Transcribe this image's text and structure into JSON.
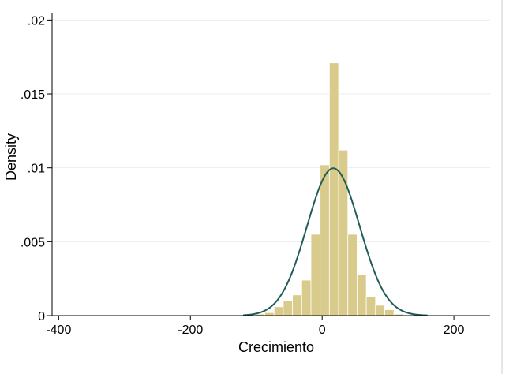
{
  "chart_data": {
    "type": "bar",
    "subtype": "histogram",
    "xlabel": "Crecimiento",
    "ylabel": "Density",
    "xlim": [
      -410,
      255
    ],
    "ylim": [
      0,
      0.0205
    ],
    "x_ticks": [
      {
        "value": -400,
        "label": "-400"
      },
      {
        "value": -200,
        "label": "-200"
      },
      {
        "value": 0,
        "label": "0"
      },
      {
        "value": 200,
        "label": "200"
      }
    ],
    "y_ticks": [
      {
        "value": 0,
        "label": "0"
      },
      {
        "value": 0.005,
        "label": ".005"
      },
      {
        "value": 0.01,
        "label": ".01"
      },
      {
        "value": 0.015,
        "label": ".015"
      },
      {
        "value": 0.02,
        "label": ".02"
      }
    ],
    "grid": true,
    "bin_width": 14,
    "bins": [
      {
        "x0": -255,
        "x1": -241,
        "density": 5e-05
      },
      {
        "x0": -213,
        "x1": -199,
        "density": 5e-05
      },
      {
        "x0": -157,
        "x1": -143,
        "density": 3e-05
      },
      {
        "x0": -115,
        "x1": -101,
        "density": 5e-05
      },
      {
        "x0": -101,
        "x1": -87,
        "density": 0.0001
      },
      {
        "x0": -87,
        "x1": -73,
        "density": 0.0002
      },
      {
        "x0": -73,
        "x1": -59,
        "density": 0.0006
      },
      {
        "x0": -59,
        "x1": -45,
        "density": 0.001
      },
      {
        "x0": -45,
        "x1": -31,
        "density": 0.0014
      },
      {
        "x0": -31,
        "x1": -17,
        "density": 0.0024
      },
      {
        "x0": -17,
        "x1": -3,
        "density": 0.0055
      },
      {
        "x0": -3,
        "x1": 11,
        "density": 0.0102
      },
      {
        "x0": 11,
        "x1": 25,
        "density": 0.0171
      },
      {
        "x0": 25,
        "x1": 39,
        "density": 0.0112
      },
      {
        "x0": 39,
        "x1": 53,
        "density": 0.0055
      },
      {
        "x0": 53,
        "x1": 67,
        "density": 0.0028
      },
      {
        "x0": 67,
        "x1": 81,
        "density": 0.0013
      },
      {
        "x0": 81,
        "x1": 95,
        "density": 0.0007
      },
      {
        "x0": 95,
        "x1": 109,
        "density": 0.0004
      },
      {
        "x0": 109,
        "x1": 123,
        "density": 0.0001
      },
      {
        "x0": 237,
        "x1": 251,
        "density": 5e-05
      }
    ],
    "normal_curve": {
      "mean": 17,
      "sd": 40,
      "peak_density": 0.00997
    },
    "colors": {
      "bar_fill": "#d8cb8c",
      "bar_stroke": "#ffffff",
      "curve": "#1f5c5a",
      "grid": "#e9eef0",
      "axis": "#000000"
    }
  }
}
